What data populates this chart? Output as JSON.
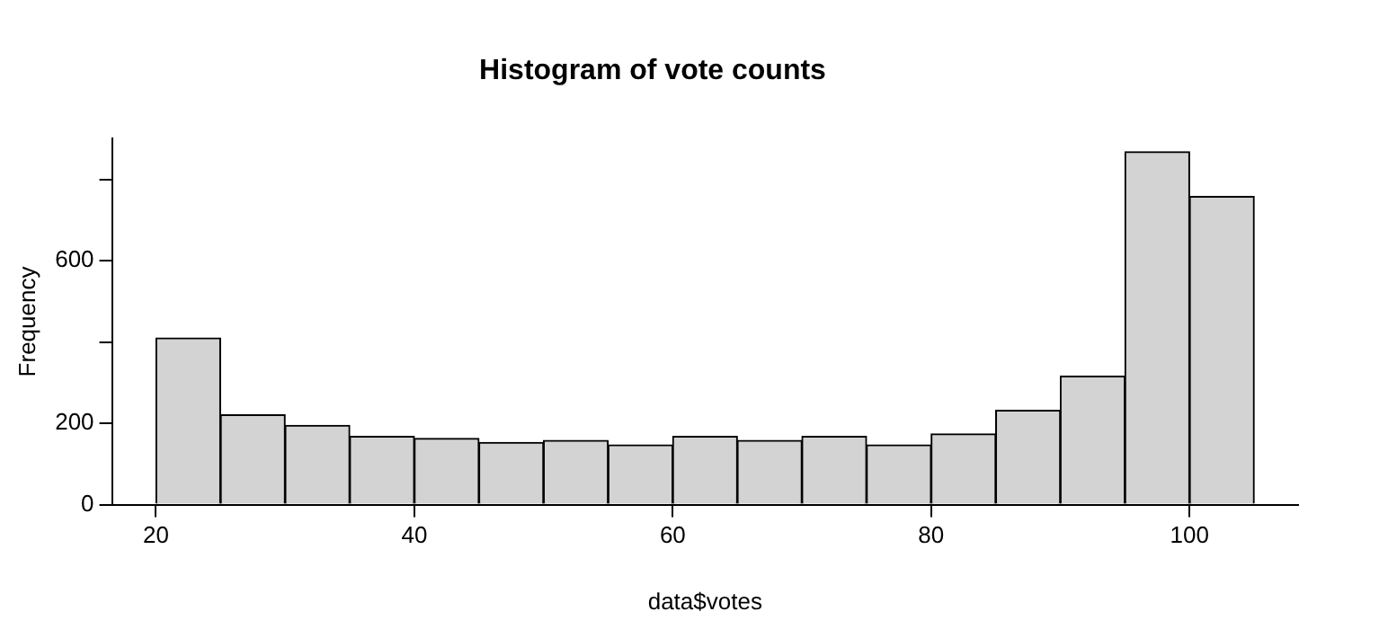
{
  "chart_data": {
    "type": "histogram",
    "title": "Histogram of vote counts",
    "xlabel": "data$votes",
    "ylabel": "Frequency",
    "bins": [
      20,
      25,
      30,
      35,
      40,
      45,
      50,
      55,
      60,
      65,
      70,
      75,
      80,
      85,
      90,
      95,
      100,
      105
    ],
    "values": [
      410,
      221,
      195,
      168,
      163,
      153,
      158,
      147,
      168,
      158,
      168,
      147,
      174,
      232,
      316,
      868,
      758
    ],
    "color": "#d3d3d3",
    "xlim": [
      16.6,
      108.4
    ],
    "xticks": [
      20,
      40,
      60,
      80,
      100
    ],
    "ylim": [
      0,
      900
    ],
    "yticks": [
      0,
      200,
      {
        "value": 400,
        "label": null
      },
      600,
      {
        "value": 800,
        "label": null
      }
    ],
    "grid": false,
    "legend": false
  }
}
